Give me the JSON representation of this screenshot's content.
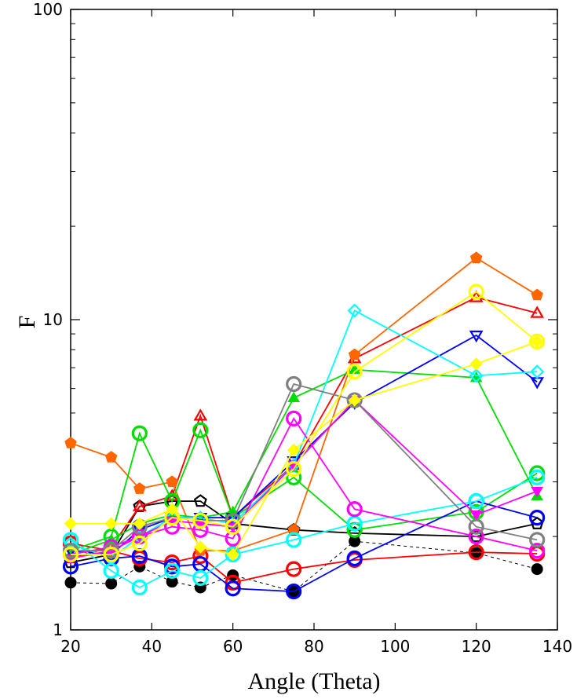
{
  "chart_data": {
    "type": "line",
    "title": "",
    "xlabel": "Angle (Theta)",
    "ylabel": "F",
    "xlim": [
      20,
      140
    ],
    "ylim": [
      1,
      100
    ],
    "yscale": "log",
    "grid": false,
    "legend": "none",
    "x_ticks": [
      "20",
      "40",
      "60",
      "80",
      "100",
      "120",
      "140"
    ],
    "y_ticks": [
      "1",
      "10",
      "100"
    ],
    "x": [
      20,
      30,
      37,
      45,
      52,
      60,
      75,
      90,
      120,
      135
    ],
    "series": [
      {
        "color": "#000000",
        "dash": "dashed",
        "marker": "circle-filled",
        "values": [
          1.42,
          1.41,
          1.6,
          1.43,
          1.37,
          1.5,
          1.33,
          1.93,
          1.77,
          1.57
        ]
      },
      {
        "color": "#000000",
        "dash": "solid",
        "marker": "pentagon-open",
        "values": [
          1.65,
          1.75,
          2.5,
          2.6,
          2.6,
          2.2,
          2.1,
          2.05,
          2.0,
          2.2
        ]
      },
      {
        "color": "#ff0000",
        "dash": "solid",
        "marker": "circle-open",
        "values": [
          1.9,
          1.8,
          1.7,
          1.65,
          1.73,
          1.42,
          1.57,
          1.68,
          1.78,
          1.76
        ]
      },
      {
        "color": "#ff0000",
        "dash": "solid",
        "marker": "triangle-up-open",
        "values": [
          1.7,
          1.85,
          2.5,
          2.7,
          4.9,
          2.3,
          3.4,
          7.5,
          11.8,
          10.5
        ]
      },
      {
        "color": "#ff6600",
        "dash": "solid",
        "marker": "pentagon-filled",
        "values": [
          4.0,
          3.6,
          2.85,
          3.0,
          1.8,
          1.8,
          2.1,
          7.7,
          15.8,
          12.0
        ]
      },
      {
        "color": "#00dd00",
        "dash": "solid",
        "marker": "circle-open",
        "values": [
          1.8,
          2.0,
          4.3,
          2.6,
          4.4,
          2.3,
          3.1,
          2.1,
          2.4,
          3.2
        ]
      },
      {
        "color": "#00dd00",
        "dash": "solid",
        "marker": "triangle-up-filled",
        "values": [
          1.75,
          1.95,
          2.2,
          2.35,
          2.3,
          2.4,
          5.6,
          6.9,
          6.5,
          2.7
        ]
      },
      {
        "color": "#0000ff",
        "dash": "solid",
        "marker": "circle-open",
        "values": [
          1.6,
          1.7,
          1.73,
          1.6,
          1.63,
          1.36,
          1.33,
          1.7,
          2.6,
          2.3
        ]
      },
      {
        "color": "#0000ff",
        "dash": "solid",
        "marker": "triangle-down-open",
        "values": [
          1.8,
          1.75,
          2.1,
          2.3,
          2.3,
          2.3,
          3.5,
          5.4,
          8.9,
          6.3
        ]
      },
      {
        "color": "#00ffff",
        "dash": "solid",
        "marker": "circle-open",
        "values": [
          1.95,
          1.55,
          1.37,
          1.55,
          1.47,
          1.75,
          1.95,
          2.2,
          2.6,
          3.1
        ]
      },
      {
        "color": "#00ffff",
        "dash": "solid",
        "marker": "diamond-open",
        "values": [
          1.9,
          1.7,
          2.0,
          2.3,
          2.3,
          2.2,
          3.4,
          10.7,
          6.6,
          6.8
        ]
      },
      {
        "color": "#ff00ff",
        "dash": "solid",
        "marker": "circle-open",
        "values": [
          1.75,
          1.85,
          2.0,
          2.15,
          2.1,
          1.97,
          4.8,
          2.45,
          2.0,
          1.8
        ]
      },
      {
        "color": "#ff00ff",
        "dash": "solid",
        "marker": "triangle-down-filled",
        "values": [
          1.7,
          1.8,
          2.0,
          2.25,
          2.2,
          2.15,
          3.4,
          5.5,
          2.35,
          2.8
        ]
      },
      {
        "color": "#808080",
        "dash": "solid",
        "marker": "circle-open",
        "values": [
          1.8,
          1.8,
          2.15,
          2.3,
          2.25,
          2.25,
          6.2,
          5.5,
          2.15,
          1.95
        ]
      },
      {
        "color": "#ffff00",
        "dash": "solid",
        "marker": "circle-open",
        "values": [
          1.75,
          1.75,
          1.9,
          2.3,
          2.25,
          2.15,
          3.3,
          6.8,
          12.3,
          8.5
        ]
      },
      {
        "color": "#ffff00",
        "dash": "solid",
        "marker": "diamond-filled",
        "values": [
          2.2,
          2.2,
          2.2,
          2.45,
          1.85,
          1.75,
          3.8,
          5.5,
          7.2,
          8.5
        ]
      }
    ]
  }
}
